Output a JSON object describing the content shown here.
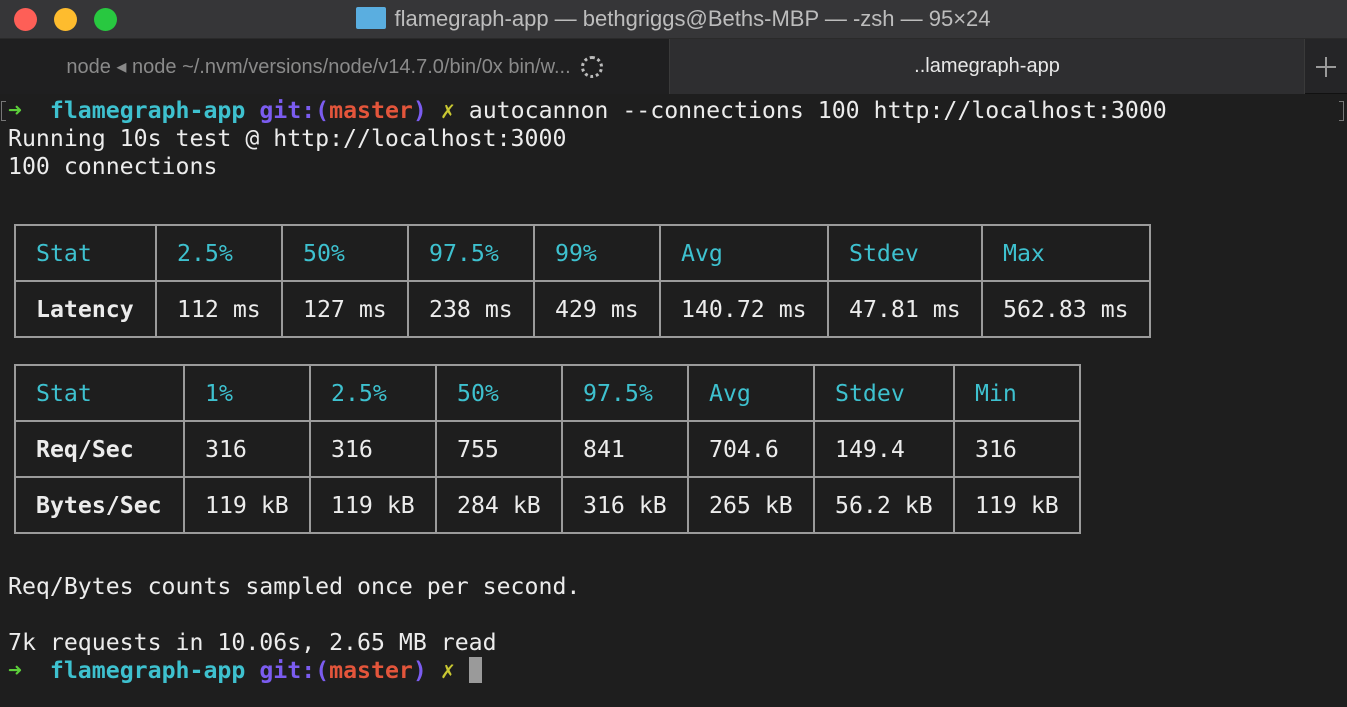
{
  "window": {
    "title": "flamegraph-app — bethgriggs@Beths-MBP — -zsh — 95×24",
    "folder_icon": "folder-icon"
  },
  "tabs": [
    {
      "label": "node ◂ node ~/.nvm/versions/node/v14.7.0/bin/0x bin/w...",
      "active": false
    },
    {
      "label": "..lamegraph-app",
      "active": true
    }
  ],
  "colors": {
    "arrow": "#5ccf3a",
    "dir": "#3ec1cf",
    "git": "#7b5cf0",
    "branch": "#e3553b",
    "dirty": "#c9c832",
    "header": "#3ec1cf"
  },
  "prompt": {
    "arrow": "➜",
    "dir": "flamegraph-app",
    "git_prefix": "git:(",
    "branch": "master",
    "git_suffix": ")",
    "dirty": "✗"
  },
  "command": "autocannon --connections 100 http://localhost:3000",
  "output": {
    "running": "Running 10s test @ http://localhost:3000",
    "connections": "100 connections",
    "note": "Req/Bytes counts sampled once per second.",
    "summary": "7k requests in 10.06s, 2.65 MB read"
  },
  "latency_table": {
    "headers": [
      "Stat",
      "2.5%",
      "50%",
      "97.5%",
      "99%",
      "Avg",
      "Stdev",
      "Max"
    ],
    "rows": [
      [
        "Latency",
        "112 ms",
        "127 ms",
        "238 ms",
        "429 ms",
        "140.72 ms",
        "47.81 ms",
        "562.83 ms"
      ]
    ]
  },
  "throughput_table": {
    "headers": [
      "Stat",
      "1%",
      "2.5%",
      "50%",
      "97.5%",
      "Avg",
      "Stdev",
      "Min"
    ],
    "rows": [
      [
        "Req/Sec",
        "316",
        "316",
        "755",
        "841",
        "704.6",
        "149.4",
        "316"
      ],
      [
        "Bytes/Sec",
        "119 kB",
        "119 kB",
        "284 kB",
        "316 kB",
        "265 kB",
        "56.2 kB",
        "119 kB"
      ]
    ]
  }
}
